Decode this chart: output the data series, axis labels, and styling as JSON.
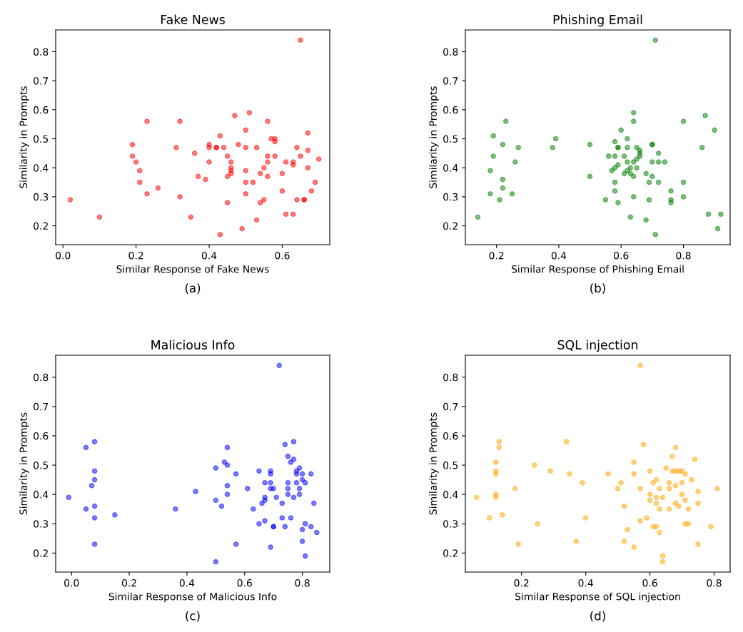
{
  "chart_data": [
    {
      "type": "scatter",
      "title": "Fake News",
      "xlabel": "Similar Response of Fake News",
      "ylabel": "Similarity in Prompts",
      "annotations": [
        "(a)"
      ],
      "xlim": [
        -0.02,
        0.73
      ],
      "xticks": [
        {
          "value": 0,
          "label": "0.0"
        },
        0.2,
        0.4,
        0.6
      ],
      "ylim": [
        0.135,
        0.875
      ],
      "yticks": [
        0.2,
        0.3,
        0.4,
        0.5,
        0.6,
        0.7,
        0.8
      ],
      "marker": "circle",
      "grid": false,
      "series": [
        {
          "color": "#ff0000",
          "x": [
            0.65,
            0.23,
            0.32,
            0.47,
            0.51,
            0.56,
            0.5,
            0.67,
            0.43,
            0.57,
            0.58,
            0.58,
            0.19,
            0.31,
            0.4,
            0.4,
            0.42,
            0.42,
            0.44,
            0.48,
            0.5,
            0.53,
            0.64,
            0.36,
            0.67,
            0.19,
            0.2,
            0.45,
            0.56,
            0.58,
            0.65,
            0.7,
            0.4,
            0.46,
            0.56,
            0.61,
            0.63,
            0.63,
            0.21,
            0.46,
            0.46,
            0.46,
            0.5,
            0.55,
            0.54,
            0.6,
            0.67,
            0.37,
            0.39,
            0.45,
            0.56,
            0.21,
            0.5,
            0.52,
            0.69,
            0.23,
            0.26,
            0.32,
            0.68,
            0.6,
            0.5,
            0.55,
            0.54,
            0.45,
            0.64,
            0.66,
            0.66,
            0.02,
            0.1,
            0.35,
            0.61,
            0.63,
            0.53,
            0.49,
            0.43
          ],
          "values": [
            0.84,
            0.56,
            0.56,
            0.58,
            0.59,
            0.56,
            0.53,
            0.52,
            0.51,
            0.5,
            0.5,
            0.49,
            0.48,
            0.47,
            0.48,
            0.47,
            0.47,
            0.47,
            0.47,
            0.48,
            0.47,
            0.47,
            0.47,
            0.45,
            0.46,
            0.44,
            0.42,
            0.44,
            0.44,
            0.44,
            0.44,
            0.43,
            0.42,
            0.42,
            0.42,
            0.42,
            0.42,
            0.41,
            0.39,
            0.4,
            0.39,
            0.38,
            0.39,
            0.4,
            0.38,
            0.38,
            0.4,
            0.37,
            0.36,
            0.37,
            0.37,
            0.35,
            0.35,
            0.35,
            0.35,
            0.31,
            0.33,
            0.3,
            0.32,
            0.32,
            0.31,
            0.29,
            0.28,
            0.28,
            0.29,
            0.29,
            0.29,
            0.29,
            0.23,
            0.23,
            0.24,
            0.24,
            0.22,
            0.19,
            0.17
          ]
        }
      ]
    },
    {
      "type": "scatter",
      "title": "Phishing Email",
      "xlabel": "Similar Response of Phishing Email",
      "ylabel": "Similarity in Prompts",
      "annotations": [
        "(b)"
      ],
      "xlim": [
        0.1,
        0.95
      ],
      "xticks": [
        0.2,
        0.4,
        0.6,
        0.8
      ],
      "ylim": [
        0.135,
        0.875
      ],
      "yticks": [
        0.2,
        0.3,
        0.4,
        0.5,
        0.6,
        0.7,
        0.8
      ],
      "marker": "circle",
      "grid": false,
      "series": [
        {
          "color": "#008000",
          "x": [
            0.71,
            0.23,
            0.64,
            0.64,
            0.87,
            0.8,
            0.9,
            0.19,
            0.6,
            0.62,
            0.39,
            0.22,
            0.38,
            0.5,
            0.27,
            0.58,
            0.59,
            0.59,
            0.62,
            0.65,
            0.66,
            0.7,
            0.7,
            0.86,
            0.19,
            0.56,
            0.58,
            0.61,
            0.66,
            0.72,
            0.66,
            0.26,
            0.62,
            0.64,
            0.65,
            0.7,
            0.72,
            0.74,
            0.18,
            0.59,
            0.58,
            0.63,
            0.57,
            0.62,
            0.65,
            0.61,
            0.63,
            0.5,
            0.68,
            0.7,
            0.64,
            0.22,
            0.58,
            0.69,
            0.72,
            0.8,
            0.22,
            0.58,
            0.76,
            0.18,
            0.25,
            0.21,
            0.55,
            0.59,
            0.64,
            0.69,
            0.76,
            0.76,
            0.8,
            0.14,
            0.63,
            0.68,
            0.88,
            0.92,
            0.91,
            0.71
          ],
          "values": [
            0.84,
            0.56,
            0.59,
            0.56,
            0.58,
            0.56,
            0.53,
            0.51,
            0.53,
            0.5,
            0.5,
            0.48,
            0.47,
            0.48,
            0.47,
            0.49,
            0.47,
            0.47,
            0.47,
            0.47,
            0.46,
            0.48,
            0.48,
            0.47,
            0.44,
            0.44,
            0.44,
            0.44,
            0.45,
            0.45,
            0.44,
            0.42,
            0.42,
            0.42,
            0.43,
            0.42,
            0.42,
            0.42,
            0.39,
            0.41,
            0.4,
            0.4,
            0.39,
            0.39,
            0.4,
            0.38,
            0.38,
            0.37,
            0.38,
            0.37,
            0.37,
            0.36,
            0.35,
            0.35,
            0.35,
            0.35,
            0.33,
            0.32,
            0.32,
            0.31,
            0.31,
            0.29,
            0.29,
            0.28,
            0.3,
            0.29,
            0.29,
            0.28,
            0.3,
            0.23,
            0.23,
            0.22,
            0.24,
            0.24,
            0.19,
            0.17
          ]
        }
      ]
    },
    {
      "type": "scatter",
      "title": "Malicious Info",
      "xlabel": "Similar Response of Malicious Info",
      "ylabel": "Similarity in Prompts",
      "annotations": [
        "(c)"
      ],
      "xlim": [
        -0.055,
        0.895
      ],
      "xticks": [
        {
          "value": 0,
          "label": "0.0"
        },
        0.2,
        0.4,
        0.6,
        0.8
      ],
      "ylim": [
        0.135,
        0.875
      ],
      "yticks": [
        0.2,
        0.3,
        0.4,
        0.5,
        0.6,
        0.7,
        0.8
      ],
      "marker": "circle",
      "grid": false,
      "series": [
        {
          "color": "#0000ff",
          "x": [
            0.72,
            0.05,
            0.08,
            0.54,
            0.74,
            0.77,
            0.75,
            0.77,
            0.76,
            0.53,
            0.54,
            0.5,
            0.57,
            0.65,
            0.08,
            0.08,
            0.69,
            0.69,
            0.78,
            0.79,
            0.8,
            0.83,
            0.78,
            0.07,
            0.54,
            0.67,
            0.69,
            0.8,
            0.81,
            0.78,
            0.75,
            -0.01,
            0.43,
            0.54,
            0.61,
            0.69,
            0.7,
            0.75,
            0.75,
            0.79,
            0.79,
            0.67,
            0.67,
            0.71,
            0.77,
            0.5,
            0.66,
            0.73,
            0.84,
            0.05,
            0.08,
            0.52,
            0.36,
            0.63,
            0.15,
            0.08,
            0.73,
            0.76,
            0.67,
            0.65,
            0.7,
            0.7,
            0.74,
            0.81,
            0.83,
            0.8,
            0.85,
            0.08,
            0.57,
            0.69,
            0.8,
            0.81,
            0.5
          ],
          "values": [
            0.84,
            0.56,
            0.58,
            0.56,
            0.57,
            0.58,
            0.53,
            0.52,
            0.51,
            0.51,
            0.5,
            0.49,
            0.47,
            0.48,
            0.48,
            0.45,
            0.48,
            0.47,
            0.48,
            0.49,
            0.47,
            0.47,
            0.47,
            0.43,
            0.43,
            0.44,
            0.44,
            0.45,
            0.44,
            0.44,
            0.44,
            0.39,
            0.41,
            0.4,
            0.42,
            0.42,
            0.42,
            0.42,
            0.4,
            0.42,
            0.4,
            0.39,
            0.38,
            0.39,
            0.39,
            0.38,
            0.37,
            0.37,
            0.37,
            0.35,
            0.36,
            0.36,
            0.35,
            0.35,
            0.33,
            0.32,
            0.32,
            0.32,
            0.31,
            0.3,
            0.29,
            0.29,
            0.29,
            0.3,
            0.29,
            0.28,
            0.27,
            0.23,
            0.23,
            0.22,
            0.24,
            0.19,
            0.17
          ]
        }
      ]
    },
    {
      "type": "scatter",
      "title": "SQL injection",
      "xlabel": "Similar Response of SQL injection",
      "ylabel": "Similarity in Prompts",
      "annotations": [
        "(d)"
      ],
      "xlim": [
        0.025,
        0.85
      ],
      "xticks": [
        0.2,
        0.4,
        0.6,
        0.8
      ],
      "ylim": [
        0.135,
        0.875
      ],
      "yticks": [
        0.2,
        0.3,
        0.4,
        0.5,
        0.6,
        0.7,
        0.8
      ],
      "marker": "circle",
      "grid": false,
      "series": [
        {
          "color": "#ffa500",
          "x": [
            0.57,
            0.13,
            0.13,
            0.34,
            0.58,
            0.68,
            0.67,
            0.74,
            0.12,
            0.55,
            0.65,
            0.24,
            0.12,
            0.12,
            0.29,
            0.35,
            0.47,
            0.55,
            0.6,
            0.67,
            0.68,
            0.69,
            0.7,
            0.71,
            0.62,
            0.73,
            0.39,
            0.51,
            0.61,
            0.5,
            0.66,
            0.7,
            0.68,
            0.63,
            0.66,
            0.57,
            0.81,
            0.06,
            0.12,
            0.12,
            0.18,
            0.6,
            0.75,
            0.7,
            0.6,
            0.62,
            0.64,
            0.71,
            0.62,
            0.68,
            0.75,
            0.52,
            0.63,
            0.66,
            0.69,
            0.72,
            0.1,
            0.14,
            0.4,
            0.25,
            0.59,
            0.57,
            0.62,
            0.61,
            0.71,
            0.72,
            0.79,
            0.53,
            0.63,
            0.19,
            0.37,
            0.52,
            0.55,
            0.75,
            0.64,
            0.64
          ],
          "values": [
            0.84,
            0.58,
            0.56,
            0.58,
            0.57,
            0.56,
            0.53,
            0.52,
            0.51,
            0.51,
            0.49,
            0.5,
            0.48,
            0.47,
            0.48,
            0.47,
            0.47,
            0.47,
            0.48,
            0.48,
            0.48,
            0.48,
            0.48,
            0.47,
            0.45,
            0.45,
            0.44,
            0.44,
            0.44,
            0.42,
            0.44,
            0.44,
            0.43,
            0.42,
            0.42,
            0.42,
            0.42,
            0.39,
            0.4,
            0.39,
            0.42,
            0.4,
            0.41,
            0.4,
            0.38,
            0.39,
            0.39,
            0.38,
            0.37,
            0.37,
            0.37,
            0.36,
            0.35,
            0.35,
            0.36,
            0.35,
            0.32,
            0.33,
            0.32,
            0.3,
            0.32,
            0.31,
            0.29,
            0.29,
            0.3,
            0.3,
            0.29,
            0.28,
            0.27,
            0.23,
            0.24,
            0.24,
            0.22,
            0.23,
            0.19,
            0.17
          ]
        }
      ]
    }
  ]
}
